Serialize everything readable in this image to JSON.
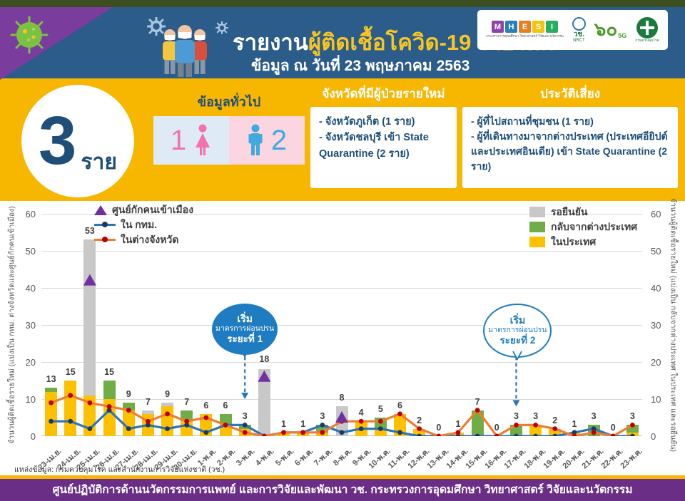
{
  "header": {
    "title_prefix": "รายงาน",
    "title_highlight": "ผู้ติดเชื้อโควิด-19 รายใหม่",
    "subtitle": "ข้อมูล ณ วันที่ 23 พฤษภาคม 2563",
    "logos": {
      "mhesi_letters": [
        "M",
        "H",
        "E",
        "S",
        "I"
      ],
      "mhesi_colors": [
        "#8E44AD",
        "#2980B9",
        "#E67E22",
        "#F1C40F",
        "#27AE60"
      ],
      "mhesi_caption": "กระทรวงการอุดมศึกษา วิทยาศาสตร์ วิจัยและนวัตกรรม",
      "nrct_label": "วช.",
      "nrct_sub": "NRCT",
      "sixty_label": "๖๐",
      "sixty_sub": "5G",
      "ddc_label": "กรมควบคุมโรค"
    }
  },
  "summary": {
    "count": "3",
    "unit": "ราย",
    "general_title": "ข้อมูลทั่วไป",
    "female_count": "1",
    "male_count": "2"
  },
  "provinces": {
    "title": "จังหวัดที่มีผู้ป่วยรายใหม่",
    "items": [
      "- จังหวัดภูเก็ต (1 ราย)",
      "- จังหวัดชลบุรี เข้า State Quarantine (2 ราย)"
    ]
  },
  "risk": {
    "title": "ประวัติเสี่ยง",
    "items": [
      "- ผู้ที่ไปสถานที่ชุมชน (1 ราย)",
      "- ผู้ที่เดินทางมาจากต่างประเทศ (ประเทศอียิปต์และประเทศอินเดีย) เข้า State Quarantine (2 ราย)"
    ]
  },
  "chart_data": {
    "type": "bar",
    "subtype": "stacked bars + two line series + triangle scatter markers",
    "categories": [
      "23-เม.ย.",
      "24-เม.ย.",
      "25-เม.ย.",
      "26-เม.ย.",
      "27-เม.ย.",
      "28-เม.ย.",
      "29-เม.ย.",
      "30-เม.ย.",
      "1-พ.ค.",
      "2-พ.ค.",
      "3-พ.ค.",
      "4-พ.ค.",
      "5-พ.ค.",
      "6-พ.ค.",
      "7-พ.ค.",
      "8-พ.ค.",
      "9-พ.ค.",
      "10-พ.ค.",
      "11-พ.ค.",
      "12-พ.ค.",
      "13-พ.ค.",
      "14-พ.ค.",
      "15-พ.ค.",
      "16-พ.ค.",
      "17-พ.ค.",
      "18-พ.ค.",
      "19-พ.ค.",
      "20-พ.ค.",
      "21-พ.ค.",
      "22-พ.ค.",
      "23-พ.ค."
    ],
    "bar_series": [
      {
        "name": "ในประเทศ",
        "color": "#FFC000",
        "values": [
          12,
          15,
          11,
          10,
          7,
          6,
          8,
          4,
          6,
          3,
          2,
          0,
          1,
          1,
          1,
          0,
          4,
          2,
          6,
          2,
          0,
          1,
          0,
          0,
          0,
          3,
          2,
          1,
          0,
          0,
          1
        ]
      },
      {
        "name": "กลับจากต่างประเทศ",
        "color": "#70AD47",
        "values": [
          1,
          0,
          0,
          5,
          2,
          0,
          0,
          3,
          0,
          3,
          1,
          0,
          0,
          0,
          2,
          0,
          0,
          3,
          0,
          0,
          0,
          0,
          7,
          0,
          3,
          0,
          0,
          0,
          3,
          0,
          2
        ]
      },
      {
        "name": "รอยืนยัน",
        "color": "#C8C8C8",
        "values": [
          0,
          0,
          42,
          0,
          0,
          1,
          1,
          0,
          0,
          0,
          0,
          18,
          0,
          0,
          0,
          8,
          0,
          0,
          0,
          0,
          0,
          0,
          0,
          0,
          0,
          0,
          0,
          0,
          0,
          0,
          0
        ]
      }
    ],
    "line_series": [
      {
        "name": "ใน กทม.",
        "color": "#2E75B6",
        "marker_color": "#203864",
        "values": [
          4,
          4,
          2,
          7,
          2,
          3,
          2,
          3,
          1,
          3,
          3,
          0,
          1,
          1,
          3,
          1,
          2,
          2,
          1,
          0,
          0,
          0,
          0,
          0,
          0,
          0,
          0,
          1,
          2,
          0,
          0
        ]
      },
      {
        "name": "ในต่างจังหวัด",
        "color": "#ED7D31",
        "marker_color": "#C00000",
        "values": [
          9,
          11,
          9,
          8,
          7,
          4,
          6,
          4,
          5,
          3,
          1,
          0,
          1,
          1,
          1,
          4,
          4,
          4,
          6,
          2,
          0,
          1,
          7,
          0,
          3,
          3,
          2,
          0,
          1,
          0,
          3
        ]
      }
    ],
    "scatter_series": {
      "name": "ศูนย์กักคนเข้าเมือง",
      "color": "#7030A0",
      "points": [
        {
          "category": "25-เม.ย.",
          "value": 42
        },
        {
          "category": "4-พ.ค.",
          "value": 16
        },
        {
          "category": "8-พ.ค.",
          "value": 5
        }
      ]
    },
    "totals": [
      13,
      15,
      53,
      15,
      9,
      7,
      9,
      7,
      6,
      6,
      3,
      18,
      1,
      1,
      3,
      8,
      4,
      5,
      6,
      2,
      0,
      1,
      7,
      0,
      3,
      3,
      2,
      1,
      3,
      0,
      3
    ],
    "ylim": [
      0,
      60
    ],
    "yticks": [
      0,
      10,
      20,
      30,
      40,
      50,
      60
    ],
    "grid": true,
    "ylabel_left": "จำนวนผู้ติดเชื้อรายใหม่ (แบ่งเป็น กทม. ต่างจังหวัดและศูนย์กักคนเข้าเมือง)",
    "ylabel_right": "จำนวนผู้ติดเชื้อรายใหม่ (แบ่งเป็น กลับจากต่างประเทศ ในประเทศ และรอยืนยัน)",
    "legend_left": [
      {
        "type": "triangle",
        "color": "#7030A0",
        "label": "ศูนย์กักคนเข้าเมือง"
      },
      {
        "type": "line",
        "color": "#2E75B6",
        "marker_color": "#203864",
        "label": "ใน กทม."
      },
      {
        "type": "line",
        "color": "#ED7D31",
        "marker_color": "#C00000",
        "label": "ในต่างจังหวัด"
      }
    ],
    "legend_right": [
      {
        "type": "box",
        "color": "#C8C8C8",
        "label": "รอยืนยัน"
      },
      {
        "type": "box",
        "color": "#70AD47",
        "label": "กลับจากต่างประเทศ"
      },
      {
        "type": "box",
        "color": "#FFC000",
        "label": "ในประเทศ"
      }
    ],
    "annotations": [
      {
        "lines": [
          "เริ่ม",
          "มาตรการผ่อนปรน",
          "ระยะที่ 1"
        ],
        "category": "3-พ.ค.",
        "style": "filled",
        "arrow_to_value": 10
      },
      {
        "lines": [
          "เริ่ม",
          "มาตรการผ่อนปรน",
          "ระยะที่ 2"
        ],
        "category": "17-พ.ค.",
        "style": "outline",
        "arrow_to_value": 8
      }
    ]
  },
  "source": "แหล่งข้อมูล: กรมควบคุมโรค และสำนักงานการวิจัยแห่งชาติ (วช.)",
  "footer": "ศูนย์ปฏิบัติการด้านนวัตกรรมการแพทย์ และการวิจัยและพัฒนา  วช.   กระทรวงการอุดมศึกษา วิทยาศาสตร์ วิจัยและนวัตกรรม"
}
